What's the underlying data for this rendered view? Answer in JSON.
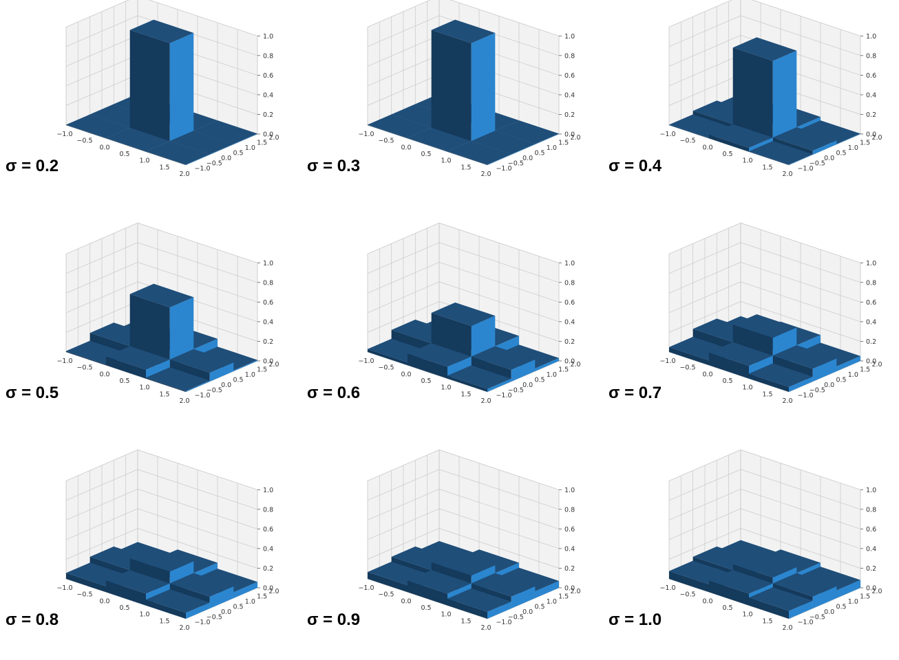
{
  "colors": {
    "bar_top": "#1f4e79",
    "bar_front": "#143a5c",
    "bar_side": "#2b86cf",
    "pane": "#f2f2f2",
    "pane_edge": "#d0d0d0",
    "grid": "#c8c8c8",
    "axis_text": "#333333"
  },
  "chart_data": [
    {
      "type": "bar3d",
      "label": "σ = 0.2",
      "x_ticks": [
        "−1.0",
        "−0.5",
        "0.0",
        "0.5",
        "1.0",
        "1.5",
        "2.0"
      ],
      "y_ticks": [
        "−1.0",
        "−0.5",
        "0.0",
        "0.5",
        "1.0",
        "1.5",
        "2.0"
      ],
      "z_ticks": [
        "0.0",
        "0.2",
        "0.4",
        "0.6",
        "0.8",
        "1.0"
      ],
      "zlim": [
        0,
        1
      ],
      "heights": [
        [
          0.0,
          0.0,
          0.0
        ],
        [
          0.0,
          1.0,
          0.0
        ],
        [
          0.0,
          0.0,
          0.0
        ]
      ]
    },
    {
      "type": "bar3d",
      "label": "σ = 0.3",
      "x_ticks": [
        "−1.0",
        "−0.5",
        "0.0",
        "0.5",
        "1.0",
        "1.5",
        "2.0"
      ],
      "y_ticks": [
        "−1.0",
        "−0.5",
        "0.0",
        "0.5",
        "1.0",
        "1.5",
        "2.0"
      ],
      "z_ticks": [
        "0.0",
        "0.2",
        "0.4",
        "0.6",
        "0.8",
        "1.0"
      ],
      "zlim": [
        0,
        1
      ],
      "heights": [
        [
          0.0,
          0.0,
          0.0
        ],
        [
          0.0,
          1.0,
          0.0
        ],
        [
          0.0,
          0.0,
          0.0
        ]
      ]
    },
    {
      "type": "bar3d",
      "label": "σ = 0.4",
      "x_ticks": [
        "−1.0",
        "−0.5",
        "0.0",
        "0.5",
        "1.0",
        "1.5",
        "2.0"
      ],
      "y_ticks": [
        "−1.0",
        "−0.5",
        "0.0",
        "0.5",
        "1.0",
        "1.5",
        "2.0"
      ],
      "z_ticks": [
        "0.0",
        "0.2",
        "0.4",
        "0.6",
        "0.8",
        "1.0"
      ],
      "zlim": [
        0,
        1
      ],
      "heights": [
        [
          0.0,
          0.04,
          0.0
        ],
        [
          0.04,
          0.82,
          0.04
        ],
        [
          0.0,
          0.04,
          0.0
        ]
      ]
    },
    {
      "type": "bar3d",
      "label": "σ = 0.5",
      "x_ticks": [
        "−1.0",
        "−0.5",
        "0.0",
        "0.5",
        "1.0",
        "1.5",
        "2.0"
      ],
      "y_ticks": [
        "−1.0",
        "−0.5",
        "0.0",
        "0.5",
        "1.0",
        "1.5",
        "2.0"
      ],
      "z_ticks": [
        "0.0",
        "0.2",
        "0.4",
        "0.6",
        "0.8",
        "1.0"
      ],
      "zlim": [
        0,
        1
      ],
      "heights": [
        [
          0.01,
          0.09,
          0.01
        ],
        [
          0.09,
          0.62,
          0.09
        ],
        [
          0.01,
          0.09,
          0.01
        ]
      ]
    },
    {
      "type": "bar3d",
      "label": "σ = 0.6",
      "x_ticks": [
        "−1.0",
        "−0.5",
        "0.0",
        "0.5",
        "1.0",
        "1.5",
        "2.0"
      ],
      "y_ticks": [
        "−1.0",
        "−0.5",
        "0.0",
        "0.5",
        "1.0",
        "1.5",
        "2.0"
      ],
      "z_ticks": [
        "0.0",
        "0.2",
        "0.4",
        "0.6",
        "0.8",
        "1.0"
      ],
      "zlim": [
        0,
        1
      ],
      "heights": [
        [
          0.03,
          0.12,
          0.03
        ],
        [
          0.12,
          0.43,
          0.12
        ],
        [
          0.03,
          0.12,
          0.03
        ]
      ]
    },
    {
      "type": "bar3d",
      "label": "σ = 0.7",
      "x_ticks": [
        "−1.0",
        "−0.5",
        "0.0",
        "0.5",
        "1.0",
        "1.5",
        "2.0"
      ],
      "y_ticks": [
        "−1.0",
        "−0.5",
        "0.0",
        "0.5",
        "1.0",
        "1.5",
        "2.0"
      ],
      "z_ticks": [
        "0.0",
        "0.2",
        "0.4",
        "0.6",
        "0.8",
        "1.0"
      ],
      "zlim": [
        0,
        1
      ],
      "heights": [
        [
          0.05,
          0.13,
          0.05
        ],
        [
          0.13,
          0.31,
          0.13
        ],
        [
          0.05,
          0.13,
          0.05
        ]
      ]
    },
    {
      "type": "bar3d",
      "label": "σ = 0.8",
      "x_ticks": [
        "−1.0",
        "−0.5",
        "0.0",
        "0.5",
        "1.0",
        "1.5",
        "2.0"
      ],
      "y_ticks": [
        "−1.0",
        "−0.5",
        "0.0",
        "0.5",
        "1.0",
        "1.5",
        "2.0"
      ],
      "z_ticks": [
        "0.0",
        "0.2",
        "0.4",
        "0.6",
        "0.8",
        "1.0"
      ],
      "zlim": [
        0,
        1
      ],
      "heights": [
        [
          0.06,
          0.12,
          0.06
        ],
        [
          0.12,
          0.24,
          0.12
        ],
        [
          0.06,
          0.12,
          0.06
        ]
      ]
    },
    {
      "type": "bar3d",
      "label": "σ = 0.9",
      "x_ticks": [
        "−1.0",
        "−0.5",
        "0.0",
        "0.5",
        "1.0",
        "1.5",
        "2.0"
      ],
      "y_ticks": [
        "−1.0",
        "−0.5",
        "0.0",
        "0.5",
        "1.0",
        "1.5",
        "2.0"
      ],
      "z_ticks": [
        "0.0",
        "0.2",
        "0.4",
        "0.6",
        "0.8",
        "1.0"
      ],
      "zlim": [
        0,
        1
      ],
      "heights": [
        [
          0.07,
          0.12,
          0.07
        ],
        [
          0.12,
          0.2,
          0.12
        ],
        [
          0.07,
          0.12,
          0.07
        ]
      ]
    },
    {
      "type": "bar3d",
      "label": "σ = 1.0",
      "x_ticks": [
        "−1.0",
        "−0.5",
        "0.0",
        "0.5",
        "1.0",
        "1.5",
        "2.0"
      ],
      "y_ticks": [
        "−1.0",
        "−0.5",
        "0.0",
        "0.5",
        "1.0",
        "1.5",
        "2.0"
      ],
      "z_ticks": [
        "0.0",
        "0.2",
        "0.4",
        "0.6",
        "0.8",
        "1.0"
      ],
      "zlim": [
        0,
        1
      ],
      "heights": [
        [
          0.08,
          0.12,
          0.08
        ],
        [
          0.12,
          0.18,
          0.12
        ],
        [
          0.08,
          0.12,
          0.08
        ]
      ]
    }
  ]
}
